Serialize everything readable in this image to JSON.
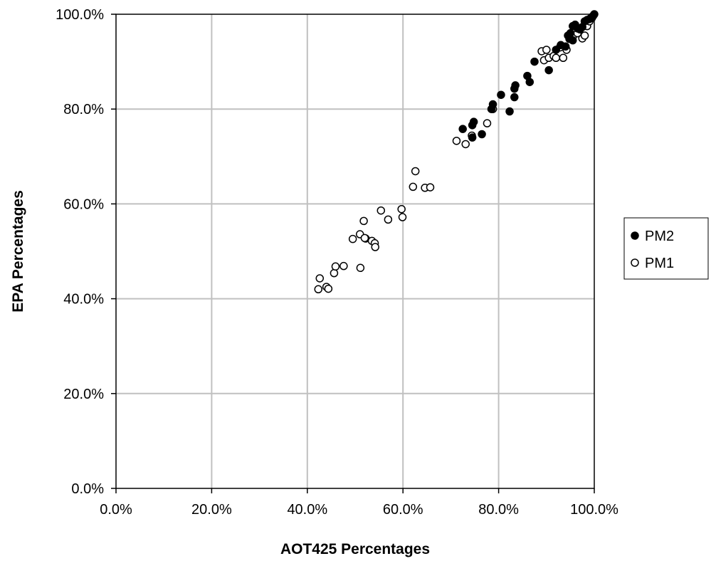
{
  "chart_data": {
    "type": "scatter",
    "title": "",
    "xlabel": "AOT425 Percentages",
    "ylabel": "EPA Percentages",
    "xlim": [
      0,
      100
    ],
    "ylim": [
      0,
      100
    ],
    "x_ticks": [
      "0.0%",
      "20.0%",
      "40.0%",
      "60.0%",
      "80.0%",
      "100.0%"
    ],
    "y_ticks": [
      "0.0%",
      "20.0%",
      "40.0%",
      "60.0%",
      "80.0%",
      "100.0%"
    ],
    "grid": true,
    "legend": "right",
    "series": [
      {
        "name": "PM2",
        "marker": "filled-circle",
        "color": "#000000",
        "x": [
          72.5,
          74.5,
          74.8,
          74.5,
          76.5,
          78.5,
          78.8,
          80.5,
          82.3,
          83.3,
          83.5,
          83.3,
          86.0,
          86.5,
          87.5,
          90.5,
          92.0,
          93.0,
          94.0,
          94.5,
          94.8,
          95.0,
          95.5,
          95.5,
          96.0,
          96.5,
          97.0,
          97.5,
          98.0,
          98.5,
          99.0,
          99.3,
          99.5,
          99.6,
          99.8,
          100.0
        ],
        "y": [
          75.8,
          74.0,
          77.3,
          76.6,
          74.7,
          80.0,
          81.0,
          83.0,
          79.5,
          84.3,
          85.0,
          82.5,
          87.0,
          85.7,
          90.0,
          88.2,
          92.5,
          93.5,
          93.2,
          95.5,
          94.8,
          96.0,
          94.5,
          97.5,
          97.8,
          97.0,
          96.8,
          97.3,
          98.5,
          98.8,
          99.0,
          99.2,
          99.4,
          99.5,
          99.7,
          100.0
        ]
      },
      {
        "name": "PM1",
        "marker": "open-circle",
        "color": "#000000",
        "x": [
          42.3,
          42.6,
          44.0,
          44.4,
          45.6,
          45.9,
          47.6,
          49.5,
          51.0,
          51.1,
          51.8,
          52.2,
          52.0,
          53.5,
          54.1,
          54.2,
          55.4,
          56.9,
          59.7,
          59.9,
          62.1,
          62.6,
          64.6,
          65.7,
          71.2,
          73.1,
          74.4,
          77.6,
          78.8,
          89.0,
          89.5,
          90.0,
          90.5,
          91.5,
          92.0,
          92.8,
          93.5,
          94.2,
          95.0,
          95.5,
          96.5,
          97.5,
          98.0,
          98.5,
          99.0,
          99.5
        ],
        "y": [
          42.0,
          44.3,
          42.5,
          42.1,
          45.4,
          46.8,
          46.9,
          52.6,
          53.6,
          46.5,
          56.4,
          52.7,
          52.8,
          52.2,
          51.7,
          50.9,
          58.6,
          56.7,
          58.9,
          57.2,
          63.6,
          66.9,
          63.4,
          63.5,
          73.3,
          72.6,
          74.4,
          77.0,
          80.0,
          92.2,
          90.3,
          92.5,
          90.8,
          91.2,
          90.8,
          93.0,
          90.8,
          92.5,
          95.5,
          95.2,
          96.0,
          94.9,
          95.5,
          97.5,
          98.5,
          99.2
        ]
      }
    ]
  }
}
